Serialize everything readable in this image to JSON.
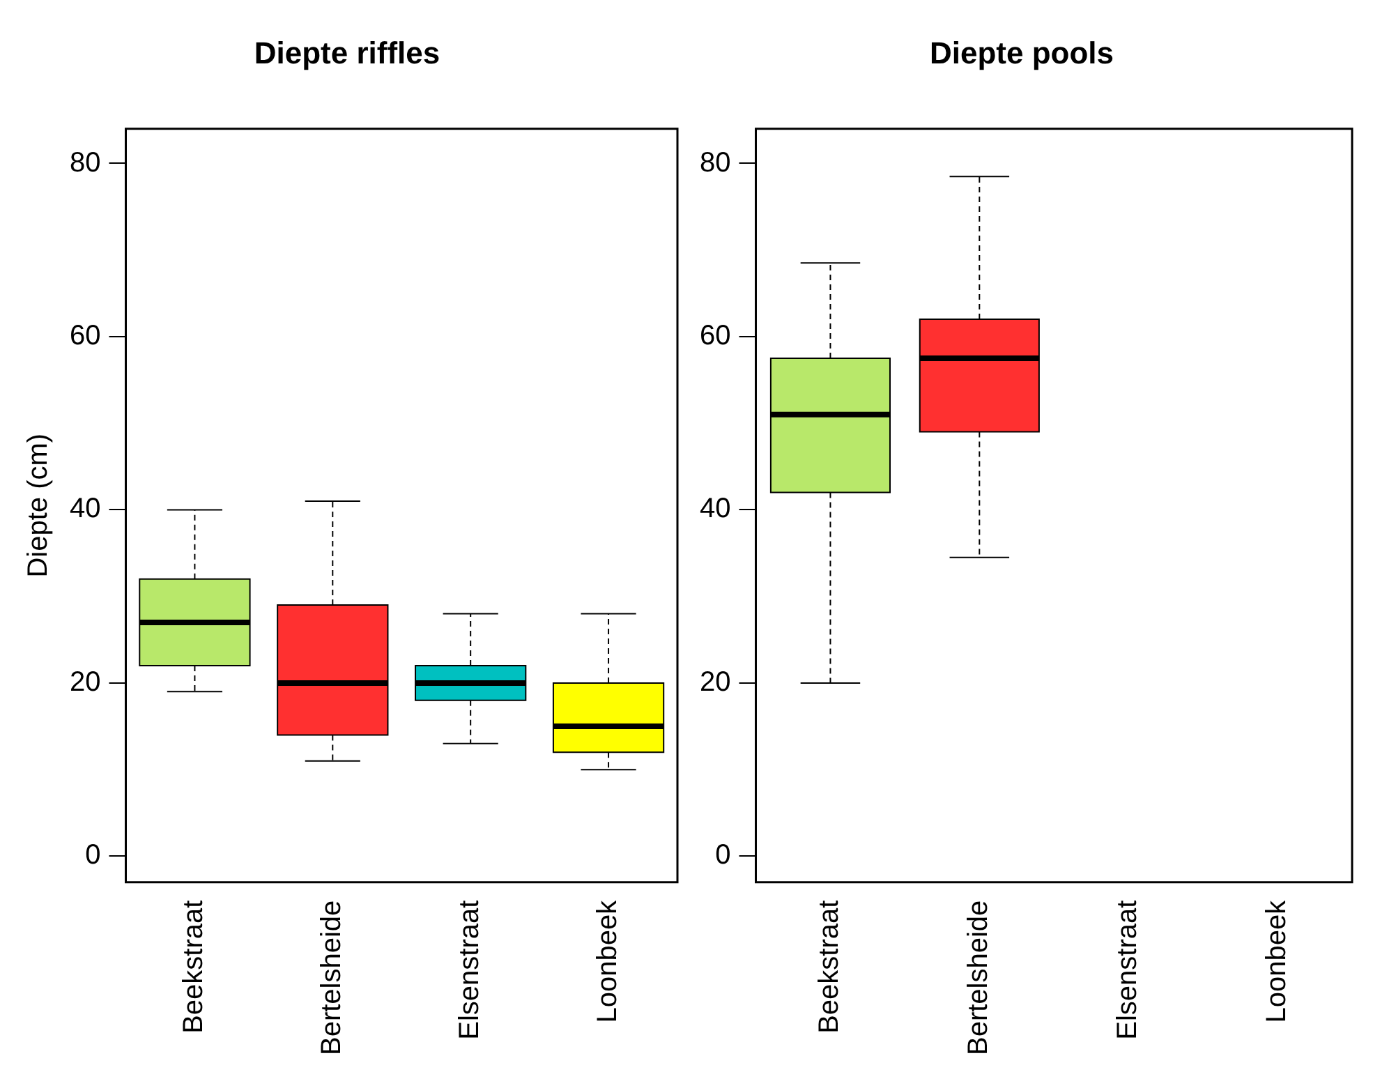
{
  "chart_data": [
    {
      "type": "box",
      "title": "Diepte riffles",
      "ylabel": "Diepte (cm)",
      "categories": [
        "Beekstraat",
        "Bertelsheide",
        "Elsenstraat",
        "Loonbeek"
      ],
      "colors": [
        "#b8e86a",
        "#ff3030",
        "#00c0c0",
        "#ffff00"
      ],
      "boxes": [
        {
          "low": 19,
          "q1": 22,
          "median": 27,
          "q3": 32,
          "high": 40
        },
        {
          "low": 11,
          "q1": 14,
          "median": 20,
          "q3": 29,
          "high": 41
        },
        {
          "low": 13,
          "q1": 18,
          "median": 20,
          "q3": 22,
          "high": 28
        },
        {
          "low": 10,
          "q1": 12,
          "median": 15,
          "q3": 20,
          "high": 28
        }
      ],
      "ylim": [
        -3,
        84
      ],
      "yticks": [
        0,
        20,
        40,
        60,
        80
      ],
      "grid": false
    },
    {
      "type": "box",
      "title": "Diepte pools",
      "categories": [
        "Beekstraat",
        "Bertelsheide",
        "Elsenstraat",
        "Loonbeek"
      ],
      "colors": [
        "#b8e86a",
        "#ff3030",
        "#00c0c0",
        "#ffff00"
      ],
      "boxes": [
        {
          "low": 20,
          "q1": 42,
          "median": 51,
          "q3": 57.5,
          "high": 68.5
        },
        {
          "low": 34.5,
          "q1": 49,
          "median": 57.5,
          "q3": 62,
          "high": 78.5
        },
        null,
        null
      ],
      "ylim": [
        -3,
        84
      ],
      "yticks": [
        0,
        20,
        40,
        60,
        80
      ],
      "grid": false
    }
  ]
}
